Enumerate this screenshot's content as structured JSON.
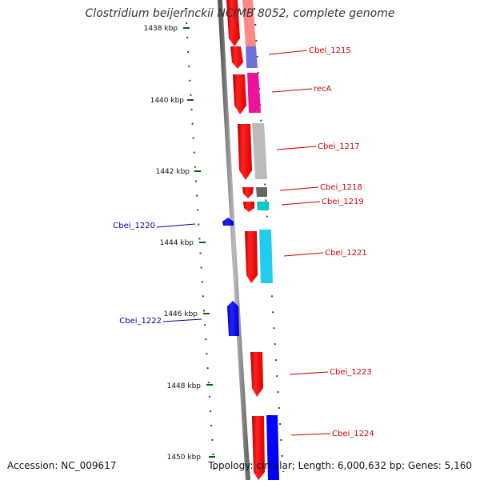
{
  "title": "Clostridium beijerinckii NCIMB 8052, complete genome",
  "footer": {
    "accession": "Accession: NC_009617",
    "topology": "Topology: circular; Length: 6,000,632 bp; Genes: 5,160"
  },
  "ruler": {
    "unit": "kbp",
    "ticks": [
      "1438 kbp",
      "1440 kbp",
      "1442 kbp",
      "1444 kbp",
      "1446 kbp",
      "1448 kbp",
      "1450 kbp"
    ]
  },
  "colors": {
    "forward_cds": "#ff0000",
    "reverse_cds": "#0000ff",
    "forward_label": "#cc0000",
    "reverse_label": "#000099",
    "backbone": "#888888",
    "tick": "#006600"
  },
  "genes": [
    {
      "label": "Cbei_1215",
      "strand": "forward",
      "func_color": "#7070d8"
    },
    {
      "label": "recA",
      "strand": "forward",
      "func_color": "#ee1199"
    },
    {
      "label": "Cbei_1217",
      "strand": "forward",
      "func_color": "#bbbbbb"
    },
    {
      "label": "Cbei_1218",
      "strand": "forward",
      "func_color": "#666666"
    },
    {
      "label": "Cbei_1219",
      "strand": "forward",
      "func_color": "#00cccc"
    },
    {
      "label": "Cbei_1220",
      "strand": "reverse",
      "func_color": ""
    },
    {
      "label": "Cbei_1221",
      "strand": "forward",
      "func_color": "#22ccee"
    },
    {
      "label": "Cbei_1222",
      "strand": "reverse",
      "func_color": ""
    },
    {
      "label": "Cbei_1223",
      "strand": "forward",
      "func_color": ""
    },
    {
      "label": "Cbei_1224",
      "strand": "forward",
      "func_color": "#0000ff"
    }
  ]
}
